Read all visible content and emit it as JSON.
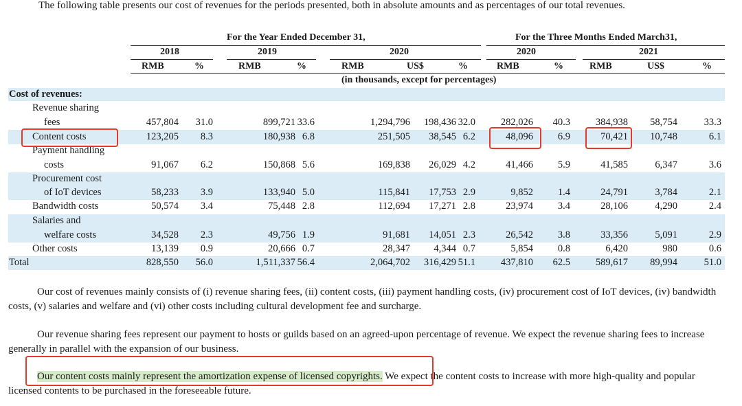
{
  "intro": "The following table presents our cost of revenues for the periods presented, both in absolute amounts and as percentages of our total revenues.",
  "headers": {
    "year_group": "For the Year Ended December 31,",
    "quarter_group": "For the Three Months Ended March31,",
    "years": [
      "2018",
      "2019",
      "2020",
      "2020",
      "2021"
    ],
    "units": [
      "RMB",
      "%",
      "RMB",
      "%",
      "RMB",
      "US$",
      "%",
      "RMB",
      "%",
      "RMB",
      "US$",
      "%"
    ],
    "note": "(in thousands, except for percentages)"
  },
  "section_title": "Cost of revenues:",
  "rows": [
    {
      "label": [
        "Revenue sharing",
        "fees"
      ],
      "values": [
        "457,804",
        "31.0",
        "899,721",
        "33.6",
        "1,294,796",
        "198,436",
        "32.0",
        "282,026",
        "40.3",
        "384,938",
        "58,754",
        "33.3"
      ]
    },
    {
      "label": [
        "Content costs"
      ],
      "values": [
        "123,205",
        "8.3",
        "180,938",
        "6.8",
        "251,505",
        "38,545",
        "6.2",
        "48,096",
        "6.9",
        "70,421",
        "10,748",
        "6.1"
      ]
    },
    {
      "label": [
        "Payment handling",
        "costs"
      ],
      "values": [
        "91,067",
        "6.2",
        "150,868",
        "5.6",
        "169,838",
        "26,029",
        "4.2",
        "41,466",
        "5.9",
        "41,585",
        "6,347",
        "3.6"
      ]
    },
    {
      "label": [
        "Procurement cost",
        "of IoT devices"
      ],
      "values": [
        "58,233",
        "3.9",
        "133,940",
        "5.0",
        "115,841",
        "17,753",
        "2.9",
        "9,852",
        "1.4",
        "24,791",
        "3,784",
        "2.1"
      ]
    },
    {
      "label": [
        "Bandwidth costs"
      ],
      "values": [
        "50,574",
        "3.4",
        "75,448",
        "2.8",
        "112,694",
        "17,271",
        "2.8",
        "23,974",
        "3.4",
        "28,106",
        "4,290",
        "2.4"
      ]
    },
    {
      "label": [
        "Salaries and",
        "welfare costs"
      ],
      "values": [
        "34,528",
        "2.3",
        "49,756",
        "1.9",
        "91,681",
        "14,051",
        "2.3",
        "26,542",
        "3.8",
        "33,356",
        "5,091",
        "2.9"
      ]
    },
    {
      "label": [
        "Other costs"
      ],
      "values": [
        "13,139",
        "0.9",
        "20,666",
        "0.7",
        "28,347",
        "4,344",
        "0.7",
        "5,854",
        "0.8",
        "6,420",
        "980",
        "0.6"
      ]
    },
    {
      "label": [
        "Total"
      ],
      "values": [
        "828,550",
        "56.0",
        "1,511,337",
        "56.4",
        "2,064,702",
        "316,429",
        "51.1",
        "437,810",
        "62.5",
        "589,617",
        "89,994",
        "51.0"
      ]
    }
  ],
  "paragraphs": {
    "p1": "Our cost of revenues mainly consists of (i) revenue sharing fees, (ii) content costs, (iii) payment handling costs, (iv) procurement cost of IoT devices, (iv) bandwidth costs, (v) salaries and welfare and (vi) other costs including cultural development fee and surcharge.",
    "p2": "Our revenue sharing fees represent our payment to hosts or guilds based on an agreed-upon percentage of revenue. We expect the revenue sharing fees to increase generally in parallel with the expansion of our business.",
    "p3_highlight": "Our content costs mainly represent the amortization expense of licensed copyrights.",
    "p3_rest": " We expect the content costs to increase with more high-quality and popular licensed contents to be purchased in the foreseeable future."
  },
  "colors": {
    "band": "#dcecf7",
    "box": "#e23b2c",
    "highlight": "#d6ecc8"
  }
}
